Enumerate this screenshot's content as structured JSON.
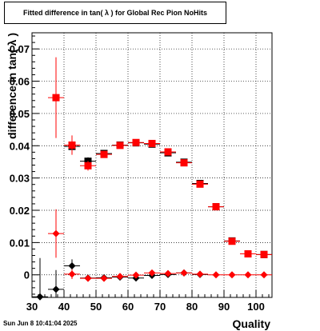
{
  "chart_data": {
    "type": "scatter",
    "title": "Fitted difference in tan( λ ) for Global Rec Pion NoHits",
    "xlabel": "Quality",
    "ylabel": "difference in tan( λ )",
    "xlim": [
      30,
      105
    ],
    "ylim": [
      -0.007,
      0.075
    ],
    "grid": true,
    "x_ticks": [
      30,
      40,
      50,
      60,
      70,
      80,
      90,
      100
    ],
    "x_tick_labels": [
      "30",
      "40",
      "50",
      "60",
      "70",
      "80",
      "90",
      "100"
    ],
    "y_ticks": [
      0,
      0.01,
      0.02,
      0.03,
      0.04,
      0.05,
      0.06,
      0.07
    ],
    "y_tick_labels": [
      "0",
      "0.01",
      "0.02",
      "0.03",
      "0.04",
      "0.05",
      "0.06",
      "0.07"
    ],
    "series": [
      {
        "marker": "square",
        "color": "#000000",
        "x": [
          42.5,
          47.5,
          52.5,
          57.5,
          62.5,
          67.5,
          72.5,
          77.5,
          82.5,
          87.5,
          92.5,
          97.5,
          102.5
        ],
        "y": [
          0.0398,
          0.0352,
          0.0376,
          0.0402,
          0.0409,
          0.0405,
          0.0378,
          0.0349,
          0.0283,
          0.0211,
          0.0105,
          0.0065,
          0.0063
        ],
        "yerr": [
          0.002,
          0.0012,
          0.0008,
          0.0006,
          0.0005,
          0.0005,
          0.0005,
          0.0005,
          0.0004,
          0.0004,
          0.0003,
          0.0003,
          0.0003
        ]
      },
      {
        "marker": "square",
        "color": "#ff0000",
        "x": [
          37.5,
          42.5,
          47.5,
          52.5,
          57.5,
          62.5,
          67.5,
          72.5,
          77.5,
          82.5,
          87.5,
          92.5,
          97.5,
          102.5
        ],
        "y": [
          0.0549,
          0.0402,
          0.0338,
          0.0373,
          0.0401,
          0.041,
          0.0407,
          0.0381,
          0.0347,
          0.0281,
          0.0211,
          0.0104,
          0.0065,
          0.0063
        ],
        "yerr": [
          0.0125,
          0.003,
          0.0015,
          0.0009,
          0.0007,
          0.0006,
          0.0006,
          0.0006,
          0.0005,
          0.0005,
          0.0004,
          0.0004,
          0.0003,
          0.0003
        ]
      },
      {
        "marker": "diamond",
        "color": "#000000",
        "x": [
          32.5,
          37.5,
          42.5,
          47.5,
          52.5,
          57.5,
          62.5,
          67.5,
          72.5,
          77.5,
          82.5
        ],
        "y": [
          -0.0068,
          -0.0045,
          0.0028,
          -0.001,
          -0.0009,
          -0.0007,
          -0.001,
          -0.0002,
          0.0001,
          0.0006,
          0.0001
        ],
        "yerr": [
          0.012,
          0.006,
          0.002,
          0.0006,
          0.0005,
          0.0004,
          0.0003,
          0.0003,
          0.0003,
          0.0003,
          0.0003
        ]
      },
      {
        "marker": "diamond",
        "color": "#ff0000",
        "x": [
          37.5,
          42.5,
          47.5,
          52.5,
          57.5,
          62.5,
          67.5,
          72.5,
          77.5,
          82.5,
          87.5,
          92.5,
          97.5,
          102.5
        ],
        "y": [
          0.0128,
          0.0002,
          -0.0011,
          -0.0011,
          -0.0005,
          -0.0001,
          0.0006,
          0.0004,
          0.0006,
          0.0002,
          0.0,
          0.0,
          0.0,
          0.0
        ],
        "yerr": [
          0.0075,
          0.0015,
          0.0007,
          0.0005,
          0.0004,
          0.0003,
          0.0003,
          0.0003,
          0.0003,
          0.0003,
          0.0002,
          0.0002,
          0.0002,
          0.0002
        ]
      }
    ]
  },
  "footer": {
    "timestamp": "Sun Jun  8 10:41:04 2025"
  }
}
